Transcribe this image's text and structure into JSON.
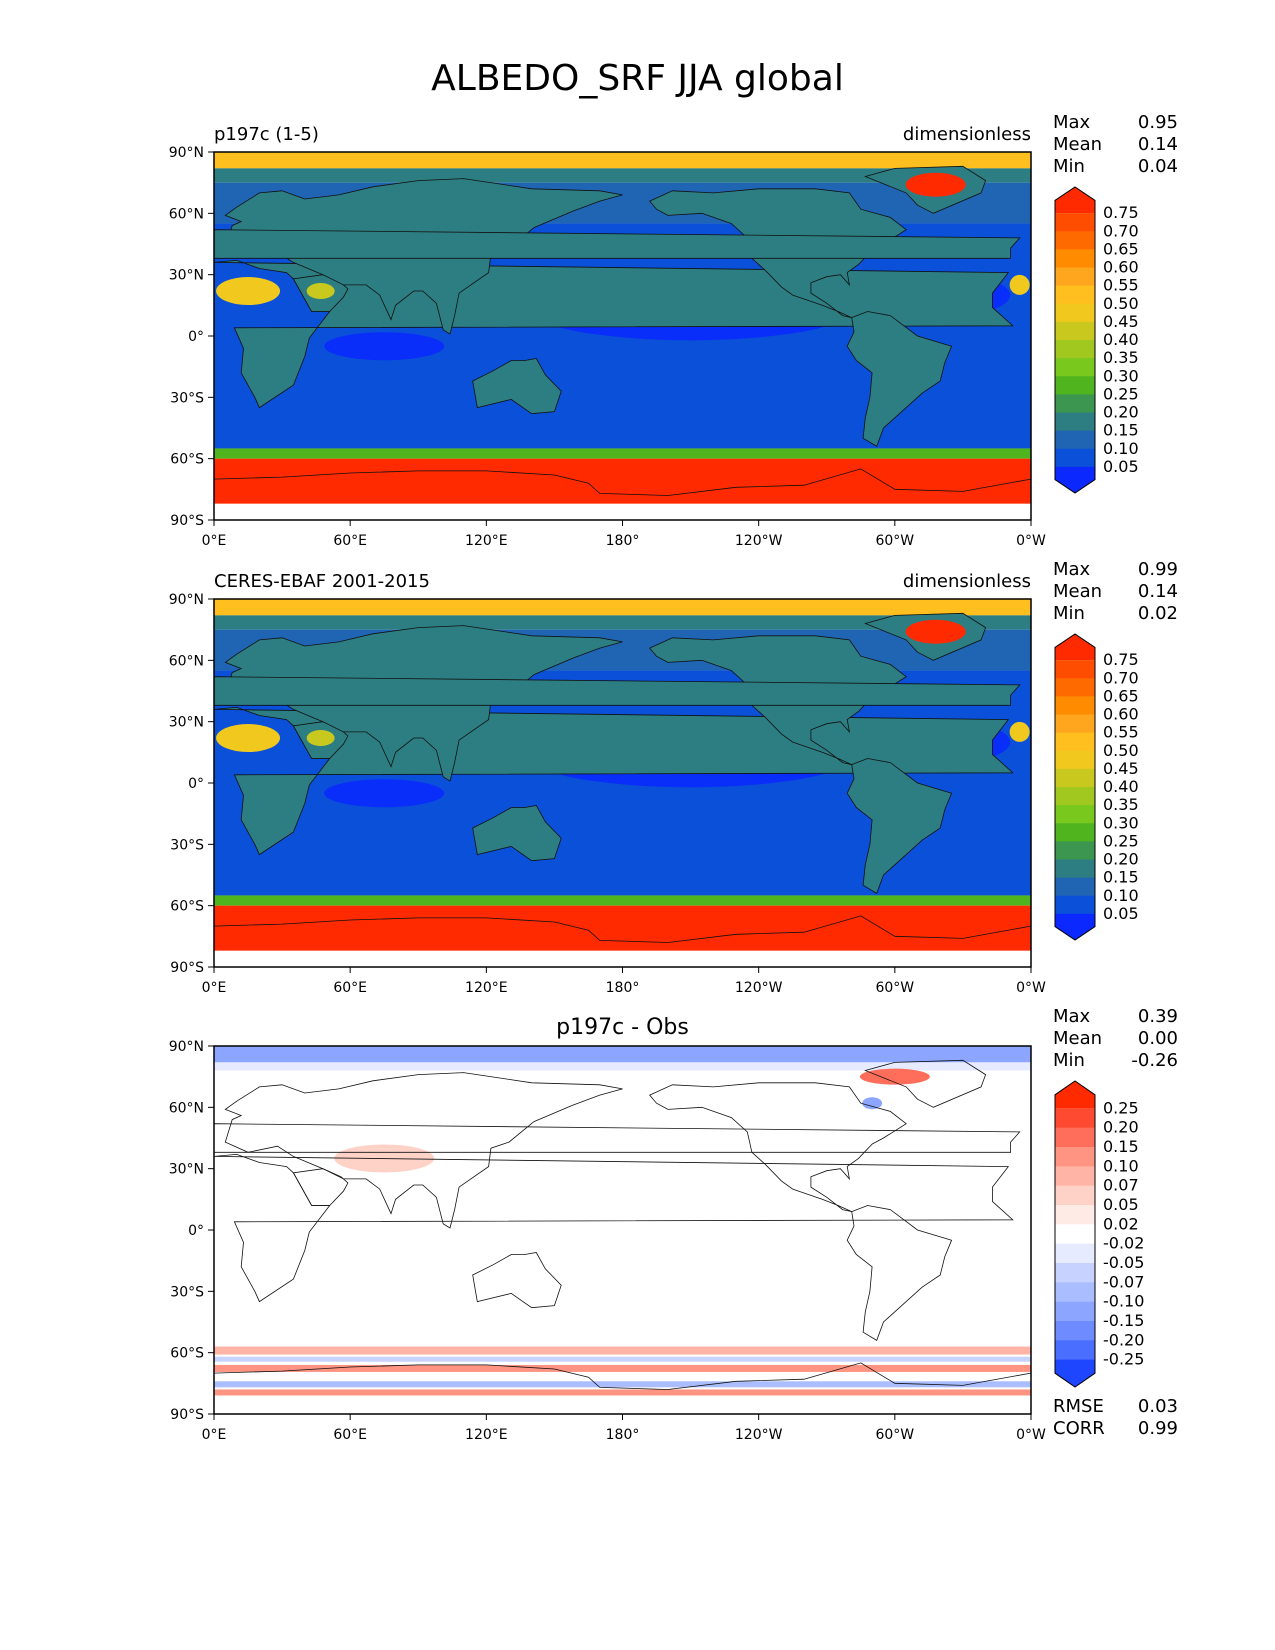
{
  "figure": {
    "title": "ALBEDO_SRF JJA global"
  },
  "chart_data": [
    {
      "type": "heatmap",
      "title_left": "p197c (1-5)",
      "title_center": "",
      "units": "dimensionless",
      "stats": {
        "labels": [
          "Max",
          "Mean",
          "Min"
        ],
        "values": [
          "0.95",
          "0.14",
          "0.04"
        ]
      },
      "x_ticks": [
        "0°E",
        "60°E",
        "120°E",
        "180°",
        "120°W",
        "60°W",
        "0°W"
      ],
      "y_ticks": [
        "90°N",
        "60°N",
        "30°N",
        "0°",
        "30°S",
        "60°S",
        "90°S"
      ],
      "xlim": [
        0,
        360
      ],
      "ylim": [
        -90,
        90
      ],
      "colorbar": {
        "levels": [
          "0.75",
          "0.70",
          "0.65",
          "0.60",
          "0.55",
          "0.50",
          "0.45",
          "0.40",
          "0.35",
          "0.30",
          "0.25",
          "0.20",
          "0.15",
          "0.10",
          "0.05"
        ],
        "colors": [
          "#ff2a00",
          "#ff4d00",
          "#ff6a00",
          "#ff8c00",
          "#ffa51e",
          "#ffbf1e",
          "#f0c81e",
          "#c8c81e",
          "#a0c81e",
          "#78c81e",
          "#50b41e",
          "#3c9650",
          "#2d7e82",
          "#2064b4",
          "#0a50d8",
          "#0a28ff"
        ]
      },
      "footer": null
    },
    {
      "type": "heatmap",
      "title_left": "CERES-EBAF 2001-2015",
      "title_center": "",
      "units": "dimensionless",
      "stats": {
        "labels": [
          "Max",
          "Mean",
          "Min"
        ],
        "values": [
          "0.99",
          "0.14",
          "0.02"
        ]
      },
      "x_ticks": [
        "0°E",
        "60°E",
        "120°E",
        "180°",
        "120°W",
        "60°W",
        "0°W"
      ],
      "y_ticks": [
        "90°N",
        "60°N",
        "30°N",
        "0°",
        "30°S",
        "60°S",
        "90°S"
      ],
      "xlim": [
        0,
        360
      ],
      "ylim": [
        -90,
        90
      ],
      "colorbar": {
        "levels": [
          "0.75",
          "0.70",
          "0.65",
          "0.60",
          "0.55",
          "0.50",
          "0.45",
          "0.40",
          "0.35",
          "0.30",
          "0.25",
          "0.20",
          "0.15",
          "0.10",
          "0.05"
        ],
        "colors": [
          "#ff2a00",
          "#ff4d00",
          "#ff6a00",
          "#ff8c00",
          "#ffa51e",
          "#ffbf1e",
          "#f0c81e",
          "#c8c81e",
          "#a0c81e",
          "#78c81e",
          "#50b41e",
          "#3c9650",
          "#2d7e82",
          "#2064b4",
          "#0a50d8",
          "#0a28ff"
        ]
      },
      "footer": null
    },
    {
      "type": "heatmap",
      "title_left": "",
      "title_center": "p197c - Obs",
      "units": "",
      "stats": {
        "labels": [
          "Max",
          "Mean",
          "Min"
        ],
        "values": [
          "0.39",
          "0.00",
          "-0.26"
        ]
      },
      "x_ticks": [
        "0°E",
        "60°E",
        "120°E",
        "180°",
        "120°W",
        "60°W",
        "0°W"
      ],
      "y_ticks": [
        "90°N",
        "60°N",
        "30°N",
        "0°",
        "30°S",
        "60°S",
        "90°S"
      ],
      "xlim": [
        0,
        360
      ],
      "ylim": [
        -90,
        90
      ],
      "colorbar": {
        "levels": [
          "0.25",
          "0.20",
          "0.15",
          "0.10",
          "0.07",
          "0.05",
          "0.02",
          "-0.02",
          "-0.05",
          "-0.07",
          "-0.10",
          "-0.15",
          "-0.20",
          "-0.25"
        ],
        "colors": [
          "#ff2a00",
          "#ff4a32",
          "#ff6e5a",
          "#ff9482",
          "#ffb4a5",
          "#ffd2c8",
          "#ffebe6",
          "#ffffff",
          "#e6ebff",
          "#c8d2ff",
          "#aabeff",
          "#8ca5ff",
          "#6e8cff",
          "#4a6eff",
          "#1e46ff"
        ]
      },
      "footer": {
        "labels": [
          "RMSE",
          "CORR"
        ],
        "values": [
          "0.03",
          "0.99"
        ]
      }
    }
  ]
}
